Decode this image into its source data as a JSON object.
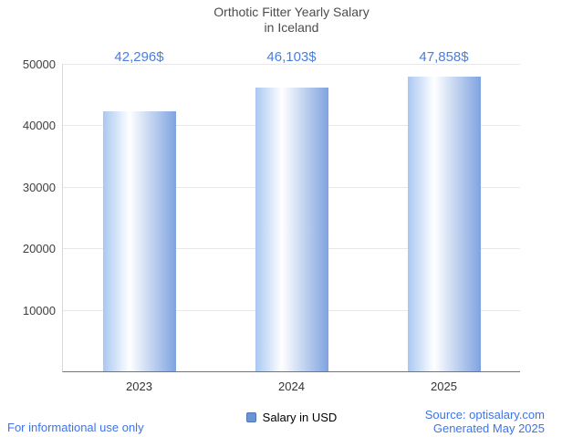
{
  "header": {
    "title_line1": "Orthotic Fitter Yearly Salary",
    "title_line2": "in Iceland"
  },
  "chart_data": {
    "type": "bar",
    "title": "Orthotic Fitter Yearly Salary in Iceland",
    "categories": [
      "2023",
      "2024",
      "2025"
    ],
    "values": [
      42296,
      46103,
      47858
    ],
    "value_labels": [
      "42,296$",
      "46,103$",
      "47,858$"
    ],
    "series_name": "Salary in USD",
    "xlabel": "",
    "ylabel": "",
    "ylim": [
      0,
      50000
    ],
    "ytick_step": 10000,
    "ytick_labels": [
      "10000",
      "20000",
      "30000",
      "40000",
      "50000"
    ],
    "grid": true,
    "legend_position": "bottom"
  },
  "legend": {
    "label": "Salary in USD"
  },
  "footer": {
    "left_note": "For informational use only",
    "source": "Source: optisalary.com",
    "generated": "Generated May 2025"
  },
  "colors": {
    "bar_gradient_left": "#a9c7f2",
    "bar_gradient_mid": "#ffffff",
    "bar_gradient_right": "#7fa3e0",
    "value_label": "#4a7de0",
    "footer_blue": "#3e74e8",
    "legend_swatch": "#6b93d6",
    "title_gray": "#4c4c4c"
  }
}
